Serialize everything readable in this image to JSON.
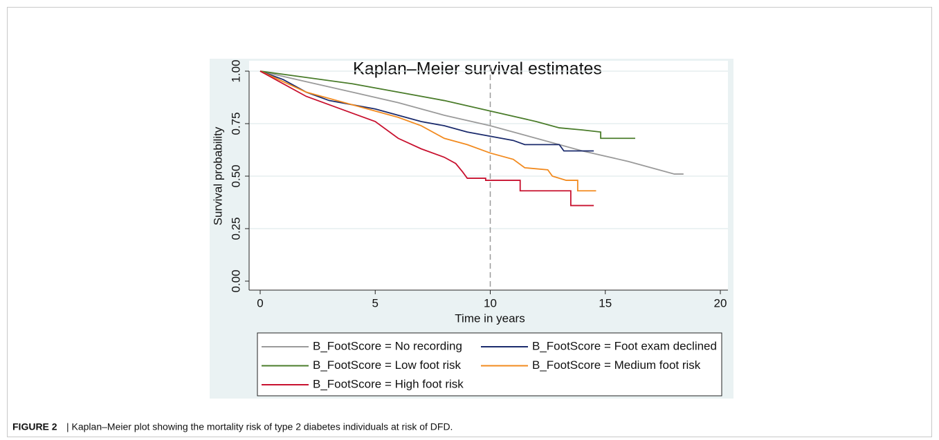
{
  "chart_data": {
    "type": "line",
    "title": "Kaplan–Meier survival estimates",
    "x_label": "Time in years",
    "y_label": "Survival probability",
    "xlim": [
      0,
      20
    ],
    "xticks": [
      0,
      5,
      10,
      15,
      20
    ],
    "ylim": [
      0,
      1
    ],
    "yticks": [
      {
        "value": 0,
        "label": "0.00"
      },
      {
        "value": 0.25,
        "label": "0.25"
      },
      {
        "value": 0.5,
        "label": "0.50"
      },
      {
        "value": 0.75,
        "label": "0.75"
      },
      {
        "value": 1,
        "label": "1.00"
      }
    ],
    "grid": true,
    "xline": 10,
    "series": [
      {
        "name": "B_FootScore = No recording",
        "color": "#9a9a9a",
        "x": [
          0,
          2,
          4,
          6,
          8,
          10,
          12,
          14,
          16,
          17,
          18,
          18.4
        ],
        "values": [
          1,
          0.95,
          0.9,
          0.85,
          0.79,
          0.74,
          0.68,
          0.62,
          0.57,
          0.54,
          0.51,
          0.51
        ]
      },
      {
        "name": "B_FootScore = Foot exam declined",
        "color": "#1a2a6c",
        "x": [
          0,
          1,
          2,
          3,
          4,
          5,
          6,
          7,
          8,
          9,
          10,
          11,
          11.5,
          13,
          13.2,
          14.5
        ],
        "values": [
          1,
          0.96,
          0.9,
          0.86,
          0.84,
          0.82,
          0.79,
          0.76,
          0.74,
          0.71,
          0.69,
          0.67,
          0.65,
          0.65,
          0.62,
          0.62
        ]
      },
      {
        "name": "B_FootScore = Low foot risk",
        "color": "#4a7c2a",
        "x": [
          0,
          2,
          4,
          6,
          8,
          10,
          12,
          13,
          14,
          14.8,
          14.8,
          16.3
        ],
        "values": [
          1,
          0.97,
          0.94,
          0.9,
          0.86,
          0.81,
          0.76,
          0.73,
          0.72,
          0.71,
          0.68,
          0.68
        ]
      },
      {
        "name": "B_FootScore = Medium foot risk",
        "color": "#f28a1e",
        "x": [
          0,
          2,
          4,
          6,
          7,
          8,
          9,
          10,
          11,
          11.5,
          12.5,
          12.7,
          13.3,
          13.8,
          13.8,
          14.6
        ],
        "values": [
          1,
          0.9,
          0.84,
          0.78,
          0.74,
          0.68,
          0.65,
          0.61,
          0.58,
          0.54,
          0.53,
          0.5,
          0.48,
          0.48,
          0.43,
          0.43
        ]
      },
      {
        "name": "B_FootScore = High foot risk",
        "color": "#c8102e",
        "x": [
          0,
          2,
          4,
          5,
          6,
          7,
          8,
          8.5,
          8.8,
          9,
          9.8,
          9.8,
          11.3,
          11.3,
          13.5,
          13.5,
          14.5
        ],
        "values": [
          1,
          0.88,
          0.8,
          0.76,
          0.68,
          0.63,
          0.59,
          0.56,
          0.52,
          0.49,
          0.49,
          0.48,
          0.48,
          0.43,
          0.43,
          0.36,
          0.36
        ]
      }
    ]
  },
  "caption": {
    "label": "FIGURE 2",
    "text": "| Kaplan–Meier plot showing the mortality risk of type 2 diabetes individuals at risk of DFD."
  }
}
